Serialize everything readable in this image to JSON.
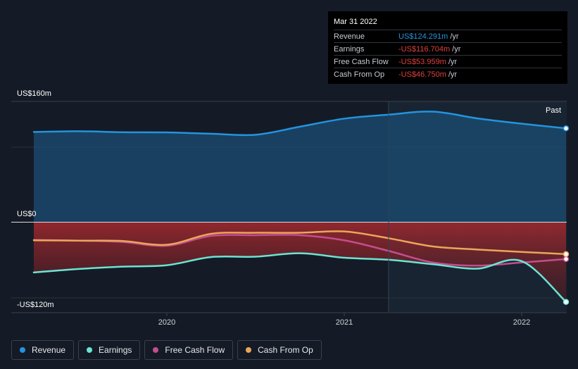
{
  "colors": {
    "revenue": "#2394df",
    "earnings": "#6ce3d3",
    "fcf": "#c44d8f",
    "cfo": "#e9a75a"
  },
  "tooltip": {
    "date": "Mar 31 2022",
    "rows": [
      {
        "label": "Revenue",
        "value": "US$124.291m",
        "unit": "/yr",
        "color": "#2394df"
      },
      {
        "label": "Earnings",
        "value": "-US$116.704m",
        "unit": "/yr",
        "color": "#e0413d"
      },
      {
        "label": "Free Cash Flow",
        "value": "-US$53.959m",
        "unit": "/yr",
        "color": "#e0413d"
      },
      {
        "label": "Cash From Op",
        "value": "-US$46.750m",
        "unit": "/yr",
        "color": "#e0413d"
      }
    ]
  },
  "legend": [
    {
      "label": "Revenue",
      "color": "#2394df"
    },
    {
      "label": "Earnings",
      "color": "#6ce3d3"
    },
    {
      "label": "Free Cash Flow",
      "color": "#c44d8f"
    },
    {
      "label": "Cash From Op",
      "color": "#e9a75a"
    }
  ],
  "chart_data": {
    "type": "line",
    "title": "",
    "xlabel": "",
    "ylabel": "",
    "y_top_label": "US$160m",
    "y_zero_label": "US$0",
    "y_bottom_label": "-US$120m",
    "past_label": "Past",
    "ylim": [
      -120,
      160
    ],
    "xlim": [
      2019.25,
      2022.25
    ],
    "x_ticks": [
      {
        "value": 2020.0,
        "label": "2020"
      },
      {
        "value": 2021.0,
        "label": "2021"
      },
      {
        "value": 2022.0,
        "label": "2022"
      }
    ],
    "past_start": 2021.25,
    "series": [
      {
        "name": "Revenue",
        "key": "revenue",
        "points": [
          [
            2019.25,
            119.5
          ],
          [
            2019.5,
            120.5
          ],
          [
            2019.75,
            119.2
          ],
          [
            2020.0,
            118.9
          ],
          [
            2020.25,
            117.2
          ],
          [
            2020.5,
            115.8
          ],
          [
            2020.75,
            126.5
          ],
          [
            2021.0,
            137.2
          ],
          [
            2021.25,
            142.5
          ],
          [
            2021.5,
            146.5
          ],
          [
            2021.75,
            137.5
          ],
          [
            2022.0,
            130.5
          ],
          [
            2022.25,
            124.3
          ]
        ]
      },
      {
        "name": "Earnings",
        "key": "earnings",
        "points": [
          [
            2019.25,
            -73.5
          ],
          [
            2019.5,
            -68.5
          ],
          [
            2019.75,
            -65.0
          ],
          [
            2020.0,
            -63.0
          ],
          [
            2020.25,
            -51.0
          ],
          [
            2020.5,
            -50.5
          ],
          [
            2020.75,
            -45.5
          ],
          [
            2021.0,
            -52.0
          ],
          [
            2021.25,
            -55.0
          ],
          [
            2021.5,
            -61.5
          ],
          [
            2021.75,
            -68.0
          ],
          [
            2022.0,
            -57.0
          ],
          [
            2022.25,
            -116.7
          ]
        ]
      },
      {
        "name": "Free Cash Flow",
        "key": "fcf",
        "points": [
          [
            2019.25,
            -26.0
          ],
          [
            2019.5,
            -27.0
          ],
          [
            2019.75,
            -29.0
          ],
          [
            2020.0,
            -34.5
          ],
          [
            2020.25,
            -20.0
          ],
          [
            2020.5,
            -19.0
          ],
          [
            2020.75,
            -19.0
          ],
          [
            2021.0,
            -26.5
          ],
          [
            2021.25,
            -42.0
          ],
          [
            2021.5,
            -59.0
          ],
          [
            2021.75,
            -63.5
          ],
          [
            2022.0,
            -59.0
          ],
          [
            2022.25,
            -54.0
          ]
        ]
      },
      {
        "name": "Cash From Op",
        "key": "cfo",
        "points": [
          [
            2019.25,
            -26.5
          ],
          [
            2019.5,
            -27.0
          ],
          [
            2019.75,
            -27.5
          ],
          [
            2020.0,
            -33.0
          ],
          [
            2020.25,
            -17.0
          ],
          [
            2020.5,
            -15.5
          ],
          [
            2020.75,
            -15.5
          ],
          [
            2021.0,
            -13.5
          ],
          [
            2021.25,
            -23.5
          ],
          [
            2021.5,
            -35.5
          ],
          [
            2021.75,
            -40.0
          ],
          [
            2022.0,
            -43.5
          ],
          [
            2022.25,
            -46.75
          ]
        ]
      }
    ]
  }
}
